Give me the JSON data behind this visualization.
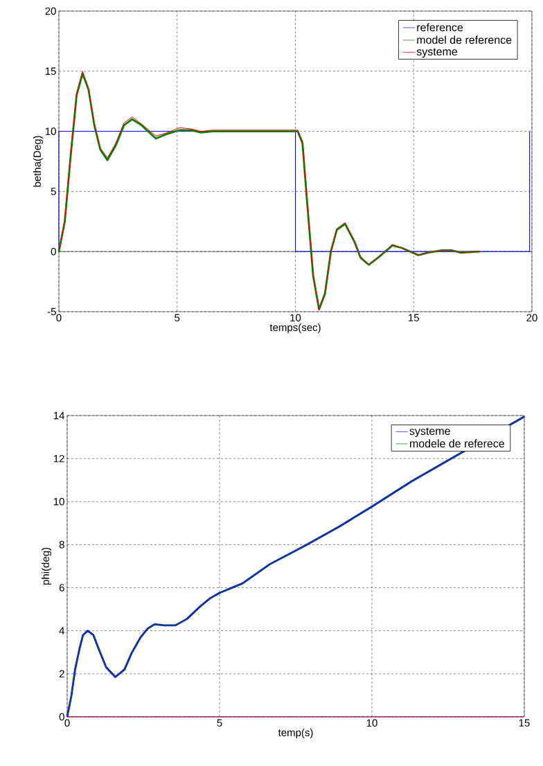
{
  "chart_data": [
    {
      "type": "line",
      "xlabel": "temps(sec)",
      "ylabel": "betha(Deg)",
      "xlim": [
        0,
        20
      ],
      "ylim": [
        -5,
        20
      ],
      "xticks": [
        0,
        5,
        10,
        15,
        20
      ],
      "yticks": [
        -5,
        0,
        5,
        10,
        15,
        20
      ],
      "grid": true,
      "legend": "top right",
      "ref_lines": [
        {
          "axis": "y",
          "value": 0,
          "color": "#000000"
        }
      ],
      "series": [
        {
          "name": "reference",
          "color": "#0000ff",
          "x": [
            0,
            0,
            10,
            10,
            19.9,
            19.9
          ],
          "values": [
            0,
            10,
            10,
            0,
            0,
            10
          ]
        },
        {
          "name": "model de reference",
          "color": "#008000",
          "x": [
            0,
            0.25,
            0.5,
            0.75,
            1.0,
            1.25,
            1.5,
            1.75,
            2.05,
            2.4,
            2.75,
            3.1,
            3.5,
            4.1,
            4.6,
            5.1,
            5.6,
            6.0,
            6.5,
            8,
            10,
            10.1,
            10.3,
            10.5,
            10.75,
            11.0,
            11.25,
            11.5,
            11.75,
            12.1,
            12.5,
            12.75,
            13.1,
            13.5,
            14.1,
            14.5,
            15.2,
            15.6,
            16.2,
            16.6,
            17.0,
            17.8
          ],
          "values": [
            0,
            2.5,
            8,
            13,
            14.8,
            13.5,
            10.5,
            8.5,
            7.6,
            8.8,
            10.5,
            11,
            10.5,
            9.4,
            9.8,
            10.1,
            10.1,
            9.9,
            10,
            10,
            10,
            10,
            9,
            4,
            -2,
            -4.8,
            -3.5,
            0,
            1.8,
            2.3,
            0.8,
            -0.5,
            -1.1,
            -0.5,
            0.5,
            0.3,
            -0.3,
            -0.1,
            0.1,
            0.1,
            -0.1,
            0
          ]
        },
        {
          "name": "systeme",
          "color": "#ff0000",
          "x": [
            0,
            0.25,
            0.5,
            0.75,
            1.0,
            1.25,
            1.5,
            1.75,
            2.05,
            2.4,
            2.75,
            3.1,
            3.5,
            4.1,
            4.6,
            5.1,
            5.6,
            6.0,
            6.5,
            8,
            10,
            10.1,
            10.3,
            10.5,
            10.75,
            11.0,
            11.25,
            11.5,
            11.75,
            12.1,
            12.5,
            12.75,
            13.1,
            13.5,
            14.1,
            14.5,
            15.2,
            15.6,
            16.2,
            16.6,
            17.0,
            17.8
          ],
          "values": [
            0,
            2.6,
            8.2,
            13.2,
            15,
            13.6,
            10.6,
            8.6,
            7.8,
            9,
            10.7,
            11.2,
            10.6,
            9.6,
            9.9,
            10.3,
            10.2,
            10,
            10.1,
            10.1,
            10.1,
            10.1,
            9.2,
            4.2,
            -1.8,
            -4.9,
            -3.6,
            -0.1,
            1.9,
            2.4,
            0.9,
            -0.4,
            -1.1,
            -0.5,
            0.6,
            0.3,
            -0.3,
            -0.1,
            0.1,
            0.1,
            -0.1,
            0
          ]
        }
      ]
    },
    {
      "type": "line",
      "xlabel": "temp(s)",
      "ylabel": "phi(deg)",
      "xlim": [
        0,
        15
      ],
      "ylim": [
        0,
        14
      ],
      "xticks": [
        0,
        5,
        10,
        15
      ],
      "yticks": [
        0,
        2,
        4,
        6,
        8,
        10,
        12,
        14
      ],
      "grid": true,
      "legend": "top right",
      "series": [
        {
          "name": "systeme",
          "color": "#0000ff",
          "x": [
            0,
            0.14,
            0.26,
            0.41,
            0.52,
            0.67,
            0.86,
            1.05,
            1.28,
            1.58,
            1.88,
            2.11,
            2.41,
            2.64,
            2.87,
            3.17,
            3.55,
            3.93,
            4.38,
            4.68,
            4.99,
            5.75,
            6.66,
            7.8,
            8.94,
            9.98,
            11.31,
            15
          ],
          "values": [
            0,
            1.0,
            2.2,
            3.2,
            3.8,
            4.0,
            3.8,
            3.1,
            2.3,
            1.85,
            2.2,
            2.95,
            3.7,
            4.1,
            4.3,
            4.25,
            4.25,
            4.55,
            5.15,
            5.5,
            5.75,
            6.2,
            7.1,
            7.95,
            8.85,
            9.75,
            10.95,
            13.95
          ]
        },
        {
          "name": "modele de referece",
          "color": "#008000",
          "x": [
            0,
            0.14,
            0.26,
            0.41,
            0.52,
            0.67,
            0.86,
            1.05,
            1.28,
            1.58,
            1.88,
            2.11,
            2.41,
            2.64,
            2.87,
            3.17,
            3.55,
            3.93,
            4.38,
            4.68,
            4.99,
            5.75,
            6.66,
            7.8,
            8.94,
            9.98,
            11.31,
            15
          ],
          "values": [
            0,
            1.0,
            2.2,
            3.2,
            3.8,
            4.0,
            3.8,
            3.1,
            2.3,
            1.85,
            2.2,
            2.95,
            3.7,
            4.1,
            4.3,
            4.25,
            4.25,
            4.55,
            5.15,
            5.5,
            5.75,
            6.2,
            7.1,
            7.95,
            8.85,
            9.75,
            10.95,
            13.95
          ]
        },
        {
          "color": "#99004c",
          "x": [
            0,
            15
          ],
          "values": [
            0,
            0
          ]
        }
      ]
    }
  ]
}
